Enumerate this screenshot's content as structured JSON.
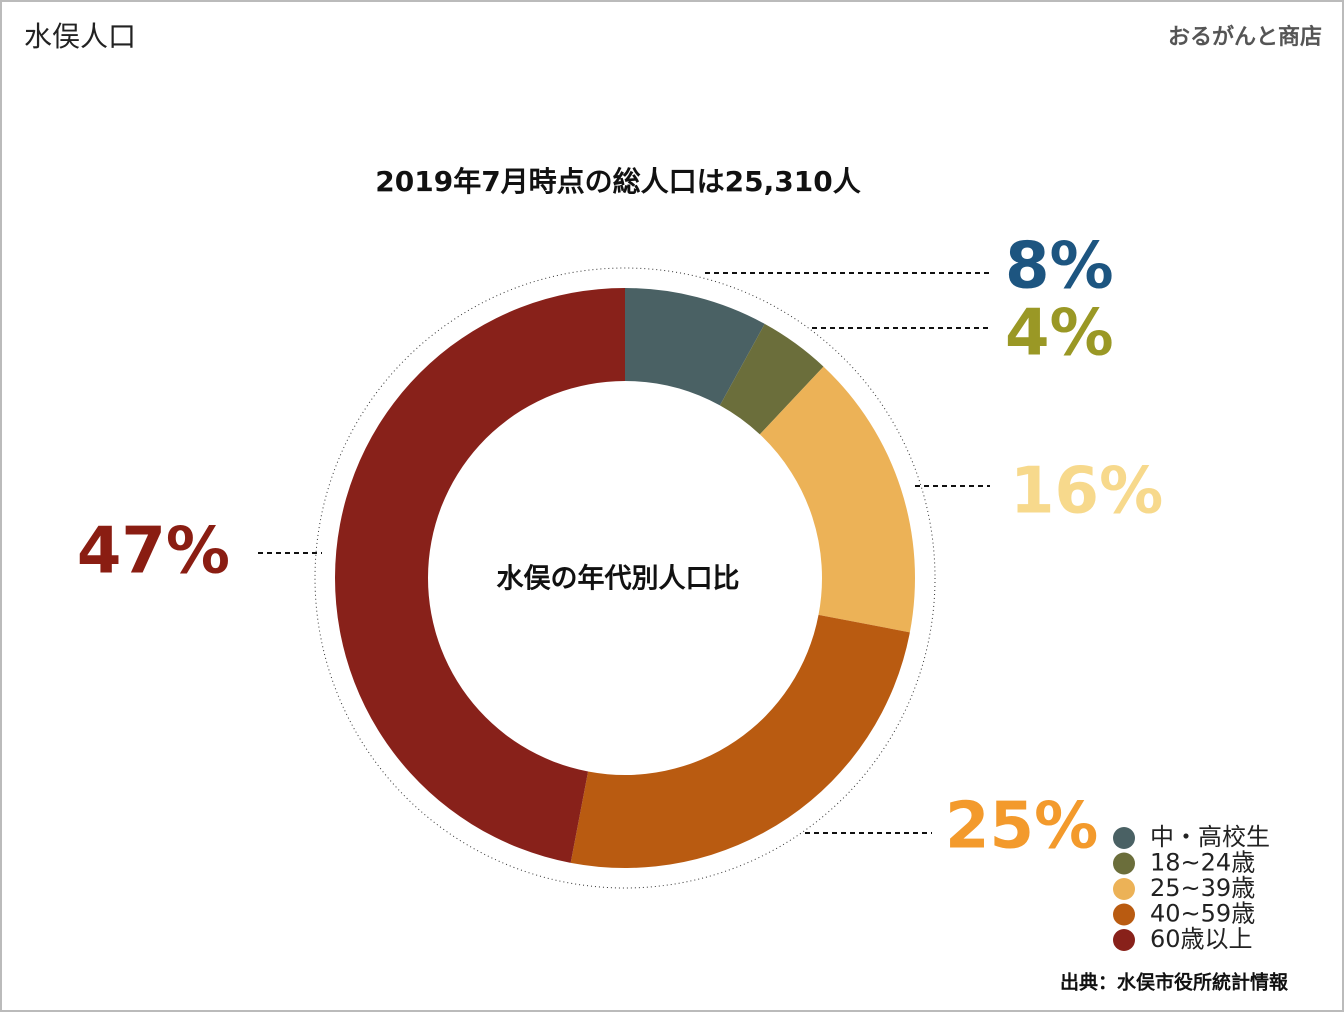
{
  "header": {
    "title": "水俣人口",
    "brand": "おるがんと商店"
  },
  "chart_data": {
    "type": "donut",
    "title": "2019年7月時点の総人口は25,310人",
    "center_label": "水俣の年代別人口比",
    "categories": [
      "中・高校生",
      "18~24歳",
      "25~39歳",
      "40~59歳",
      "60歳以上"
    ],
    "values": [
      8,
      4,
      16,
      25,
      47
    ],
    "value_labels": [
      "8%",
      "4%",
      "16%",
      "25%",
      "47%"
    ],
    "colors": [
      "#4a6164",
      "#6b6e3b",
      "#ecb257",
      "#b95b11",
      "#88211a"
    ],
    "label_colors": [
      "#1d5580",
      "#9a9825",
      "#f7d98c",
      "#f39a2c",
      "#8a1d12"
    ],
    "legend": "bottom-right"
  },
  "footer": {
    "source": "出典：水俣市役所統計情報"
  }
}
